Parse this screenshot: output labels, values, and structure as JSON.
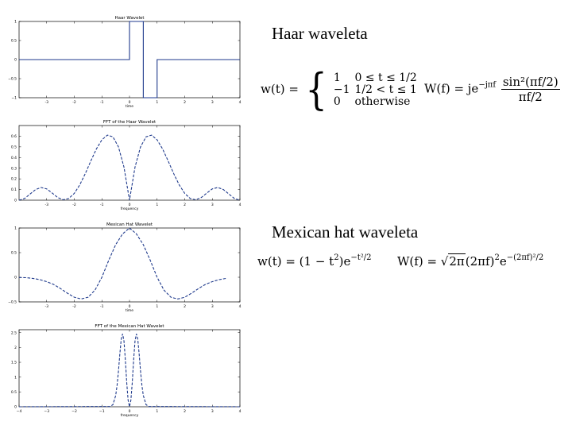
{
  "headings": {
    "haar": "Haar waveleta",
    "mexican": "Mexican hat waveleta"
  },
  "formulas": {
    "haar_lhs": "w(t) =",
    "haar_cases": [
      {
        "value": "1",
        "condition": "0 ≤ t ≤ 1/2"
      },
      {
        "value": "−1",
        "condition": "1/2 < t ≤ 1"
      },
      {
        "value": "0",
        "condition": "otherwise"
      }
    ],
    "haar_W_lhs": "W(f) = je",
    "haar_W_exp": "−jπf",
    "haar_W_num": "sin²(πf/2)",
    "haar_W_den": "πf/2",
    "mex_w_lhs": "w(t) = (1 − t",
    "mex_w_sq": "2",
    "mex_w_mid": ")e",
    "mex_w_exp": "−t²/2",
    "mex_W_lhs": "W(f) =",
    "mex_W_sqrt": "2π",
    "mex_W_mid": "(2πf)",
    "mex_W_sq": "2",
    "mex_W_e": "e",
    "mex_W_exp": "−(2πf)²/2"
  },
  "chart_data": [
    {
      "type": "line",
      "title": "Haar Wavelet",
      "xlabel": "time",
      "xlim": [
        -4,
        4
      ],
      "ylim": [
        -1,
        1
      ],
      "xticks": [
        -3,
        -2,
        -1,
        0,
        1,
        2,
        3,
        4
      ],
      "yticks": [
        -1,
        -0.5,
        0,
        0.5,
        1
      ],
      "ytick_labels": [
        "−1",
        "−0.5",
        "0",
        "0.5",
        "1"
      ],
      "xtick_labels": [
        "-3",
        "-2",
        "-1",
        "0",
        "1",
        "2",
        "3",
        "4"
      ],
      "x": [
        -4,
        0,
        0,
        0.5,
        0.5,
        1,
        1,
        4
      ],
      "y": [
        0,
        0,
        1,
        1,
        -1,
        -1,
        0,
        0
      ],
      "grid": false,
      "color": "#1f3a8c"
    },
    {
      "type": "line",
      "title": "FFT of the Haar Wavelet",
      "xlabel": "frequency",
      "xlim": [
        -4,
        4
      ],
      "ylim": [
        0,
        0.7
      ],
      "xticks": [
        -3,
        -2,
        -1,
        0,
        1,
        2,
        3,
        4
      ],
      "yticks": [
        0,
        0.1,
        0.2,
        0.3,
        0.4,
        0.5,
        0.6
      ],
      "ytick_labels": [
        "0",
        "0.1",
        "0.2",
        "0.3",
        "0.4",
        "0.5",
        "0.6"
      ],
      "xtick_labels": [
        "-3",
        "-2",
        "-1",
        "0",
        "1",
        "2",
        "3",
        "4"
      ],
      "x": [
        -4,
        -3.8,
        -3.6,
        -3.4,
        -3.2,
        -3,
        -2.8,
        -2.6,
        -2.4,
        -2.2,
        -2,
        -1.8,
        -1.6,
        -1.4,
        -1.2,
        -1,
        -0.8,
        -0.6,
        -0.4,
        -0.2,
        0,
        0.2,
        0.4,
        0.6,
        0.8,
        1,
        1.2,
        1.4,
        1.6,
        1.8,
        2,
        2.2,
        2.4,
        2.6,
        2.8,
        3,
        3.2,
        3.4,
        3.6,
        3.8,
        4
      ],
      "y": [
        0.0,
        0.016,
        0.058,
        0.1,
        0.119,
        0.106,
        0.067,
        0.025,
        0.004,
        0.016,
        0.064,
        0.144,
        0.25,
        0.368,
        0.48,
        0.566,
        0.61,
        0.594,
        0.5,
        0.31,
        0.0,
        0.31,
        0.5,
        0.594,
        0.61,
        0.566,
        0.48,
        0.368,
        0.25,
        0.144,
        0.064,
        0.016,
        0.004,
        0.025,
        0.067,
        0.106,
        0.119,
        0.1,
        0.058,
        0.016,
        0.0
      ],
      "grid": false,
      "color": "#1f3a8c",
      "dashed": true
    },
    {
      "type": "line",
      "title": "Mexican Hat Wavelet",
      "xlabel": "time",
      "xlim": [
        -4,
        4
      ],
      "ylim": [
        -0.5,
        1
      ],
      "xticks": [
        -3,
        -2,
        -1,
        0,
        1,
        2,
        3,
        4
      ],
      "yticks": [
        -0.5,
        0,
        0.5,
        1
      ],
      "ytick_labels": [
        "−0.5",
        "0",
        "0.5",
        "1"
      ],
      "xtick_labels": [
        "-3",
        "-2",
        "-1",
        "0",
        "1",
        "2",
        "3",
        "4"
      ],
      "x": [
        -4,
        -3.75,
        -3.5,
        -3.25,
        -3,
        -2.75,
        -2.5,
        -2.25,
        -2,
        -1.75,
        -1.5,
        -1.25,
        -1,
        -0.75,
        -0.5,
        -0.25,
        0,
        0.25,
        0.5,
        0.75,
        1,
        1.25,
        1.5,
        1.75,
        2,
        2.25,
        2.5,
        2.75,
        3,
        3.25,
        3.5
      ],
      "y": [
        -0.005,
        -0.008,
        -0.023,
        -0.048,
        -0.089,
        -0.145,
        -0.229,
        -0.323,
        -0.406,
        -0.441,
        -0.405,
        -0.262,
        0.0,
        0.347,
        0.662,
        0.881,
        1.0,
        0.881,
        0.662,
        0.347,
        0.0,
        -0.262,
        -0.405,
        -0.441,
        -0.406,
        -0.323,
        -0.229,
        -0.145,
        -0.089,
        -0.048,
        -0.023
      ],
      "grid": false,
      "color": "#1f3a8c",
      "dashed": true
    },
    {
      "type": "line",
      "title": "FFT of the Mexican Hat Wavelet",
      "xlabel": "frequency",
      "xlim": [
        -4,
        4
      ],
      "ylim": [
        0,
        2.6
      ],
      "xticks": [
        -4,
        -3,
        -2,
        -1,
        0,
        1,
        2,
        3,
        4
      ],
      "yticks": [
        0,
        0.5,
        1,
        1.5,
        2,
        2.5
      ],
      "ytick_labels": [
        "0",
        "0.5",
        "1",
        "1.5",
        "2",
        "2.5"
      ],
      "xtick_labels": [
        "−4",
        "−3",
        "−2",
        "−1",
        "0",
        "1",
        "2",
        "3",
        "4"
      ],
      "x": [
        -4,
        -0.7,
        -0.6,
        -0.5,
        -0.45,
        -0.4,
        -0.35,
        -0.3,
        -0.25,
        -0.2,
        -0.15,
        -0.1,
        -0.05,
        0,
        0.05,
        0.1,
        0.15,
        0.2,
        0.25,
        0.3,
        0.35,
        0.4,
        0.45,
        0.5,
        0.6,
        0.7,
        4
      ],
      "y": [
        0,
        0.01,
        0.07,
        0.38,
        0.72,
        1.2,
        1.78,
        2.28,
        2.46,
        2.22,
        1.58,
        0.81,
        0.22,
        0,
        0.22,
        0.81,
        1.58,
        2.22,
        2.46,
        2.28,
        1.78,
        1.2,
        0.72,
        0.38,
        0.07,
        0.01,
        0
      ],
      "grid": false,
      "color": "#1f3a8c",
      "dashed": true
    }
  ]
}
